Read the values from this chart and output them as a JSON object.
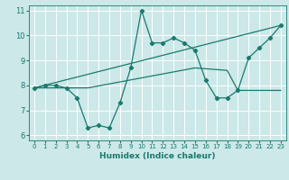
{
  "title": "",
  "xlabel": "Humidex (Indice chaleur)",
  "bg_color": "#cce8e8",
  "grid_color": "#ffffff",
  "line_color": "#1a7a6e",
  "xlim": [
    -0.5,
    23.5
  ],
  "ylim": [
    5.8,
    11.2
  ],
  "yticks": [
    6,
    7,
    8,
    9,
    10,
    11
  ],
  "xticks": [
    0,
    1,
    2,
    3,
    4,
    5,
    6,
    7,
    8,
    9,
    10,
    11,
    12,
    13,
    14,
    15,
    16,
    17,
    18,
    19,
    20,
    21,
    22,
    23
  ],
  "series1_x": [
    0,
    1,
    2,
    3,
    4,
    5,
    6,
    7,
    8,
    9,
    10,
    11,
    12,
    13,
    14,
    15,
    16,
    17,
    18,
    19,
    20,
    21,
    22,
    23
  ],
  "series1_y": [
    7.9,
    8.0,
    8.0,
    7.9,
    7.5,
    6.3,
    6.4,
    6.3,
    7.3,
    8.7,
    11.0,
    9.7,
    9.7,
    9.9,
    9.7,
    9.4,
    8.2,
    7.5,
    7.5,
    7.8,
    9.1,
    9.5,
    9.9,
    10.4
  ],
  "series2_x": [
    0,
    23
  ],
  "series2_y": [
    7.9,
    10.4
  ],
  "series3_x": [
    0,
    5,
    10,
    15,
    18,
    19,
    20,
    21,
    22,
    23
  ],
  "series3_y": [
    7.9,
    7.9,
    8.3,
    8.7,
    8.6,
    7.8,
    7.8,
    7.8,
    7.8,
    7.8
  ]
}
